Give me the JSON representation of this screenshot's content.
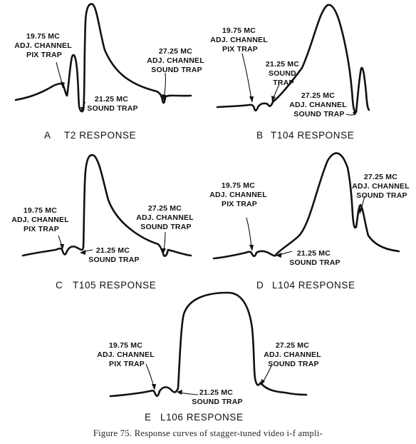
{
  "panels": {
    "a": {
      "letter": "A",
      "title": "T2 RESPONSE",
      "pix_trap": [
        "19.75 MC",
        "ADJ. CHANNEL",
        "PIX TRAP"
      ],
      "sound_trap": [
        "21.25 MC",
        "SOUND TRAP"
      ],
      "adj_sound_trap": [
        "27.25 MC",
        "ADJ. CHANNEL",
        "SOUND TRAP"
      ]
    },
    "b": {
      "letter": "B",
      "title": "T104 RESPONSE",
      "pix_trap": [
        "19.75 MC",
        "ADJ. CHANNEL",
        "PIX TRAP"
      ],
      "sound_trap": [
        "21.25 MC",
        "SOUND",
        "TRAP"
      ],
      "adj_sound_trap": [
        "27.25 MC",
        "ADJ. CHANNEL",
        "SOUND TRAP"
      ]
    },
    "c": {
      "letter": "C",
      "title": "T105 RESPONSE",
      "pix_trap": [
        "19.75 MC",
        "ADJ. CHANNEL",
        "PIX TRAP"
      ],
      "sound_trap": [
        "21.25 MC",
        "SOUND TRAP"
      ],
      "adj_sound_trap": [
        "27.25 MC",
        "ADJ. CHANNEL",
        "SOUND TRAP"
      ]
    },
    "d": {
      "letter": "D",
      "title": "L104 RESPONSE",
      "pix_trap": [
        "19.75 MC",
        "ADJ. CHANNEL",
        "PIX TRAP"
      ],
      "sound_trap": [
        "21.25 MC",
        "SOUND TRAP"
      ],
      "adj_sound_trap": [
        "27.25 MC",
        "ADJ. CHANNEL",
        "SOUND TRAP"
      ]
    },
    "e": {
      "letter": "E",
      "title": "L106 RESPONSE",
      "pix_trap": [
        "19.75 MC",
        "ADJ. CHANNEL",
        "PIX TRAP"
      ],
      "sound_trap": [
        "21.25 MC",
        "SOUND TRAP"
      ],
      "adj_sound_trap": [
        "27.25 MC",
        "ADJ. CHANNEL",
        "SOUND TRAP"
      ]
    }
  },
  "caption": "Figure 75. Response curves of stagger-tuned video i-f ampli-"
}
